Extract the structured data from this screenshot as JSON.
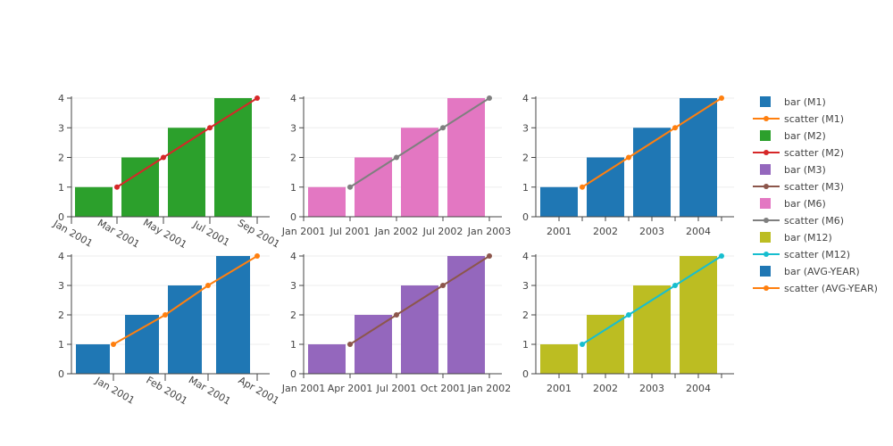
{
  "chart_data": [
    {
      "type": "bar",
      "x_axis": "date-month",
      "x_ticks": [
        "Jan 2001",
        "Mar 2001",
        "May 2001",
        "Jul 2001",
        "Sep 2001"
      ],
      "x_tick_angle": 30,
      "bars": {
        "color": "#2ca02c",
        "x": [
          "Jan 2001",
          "Mar 2001",
          "May 2001",
          "Jul 2001"
        ],
        "values": [
          1,
          2,
          3,
          4
        ]
      },
      "line": {
        "color": "#d62728",
        "x": [
          "Feb 2001",
          "Apr 2001",
          "Jun 2001",
          "Aug 2001"
        ],
        "values": [
          1,
          2,
          3,
          4
        ]
      },
      "ylim": [
        0,
        4
      ],
      "y_ticks": [
        0,
        1,
        2,
        3,
        4
      ]
    },
    {
      "type": "bar",
      "x_axis": "date-half-year",
      "x_ticks": [
        "Jan 2001",
        "Jul 2001",
        "Jan 2002",
        "Jul 2002",
        "Jan 2003"
      ],
      "x_tick_angle": 0,
      "bars": {
        "color": "#e377c2",
        "x": [
          "Apr 2001",
          "Oct 2001",
          "Apr 2002",
          "Oct 2002"
        ],
        "values": [
          1,
          2,
          3,
          4
        ]
      },
      "line": {
        "color": "#7f7f7f",
        "x": [
          "Jul 2001",
          "Jan 2002",
          "Jul 2002",
          "Jan 2003"
        ],
        "values": [
          1,
          2,
          3,
          4
        ]
      },
      "ylim": [
        0,
        4
      ],
      "y_ticks": [
        0,
        1,
        2,
        3,
        4
      ]
    },
    {
      "type": "bar",
      "x_axis": "year",
      "x_ticks": [
        "2001",
        "2002",
        "2003",
        "2004"
      ],
      "x_tick_angle": 0,
      "bars": {
        "color": "#1f77b4",
        "x": [
          "2001",
          "2002",
          "2003",
          "2004"
        ],
        "values": [
          1,
          2,
          3,
          4
        ]
      },
      "line": {
        "color": "#ff7f0e",
        "x": [
          "Jul 2001",
          "Jul 2002",
          "Jul 2003",
          "Jul 2004"
        ],
        "values": [
          1,
          2,
          3,
          4
        ]
      },
      "ylim": [
        0,
        4
      ],
      "y_ticks": [
        0,
        1,
        2,
        3,
        4
      ]
    },
    {
      "type": "bar",
      "x_axis": "date-month",
      "x_ticks": [
        "Jan 2001",
        "Feb 2001",
        "Mar 2001",
        "Apr 2001"
      ],
      "x_tick_angle": 30,
      "bars": {
        "color": "#1f77b4",
        "x": [
          "Dec 2000",
          "Jan 2001",
          "Feb 2001",
          "Mar 2001"
        ],
        "values": [
          1,
          2,
          3,
          4
        ]
      },
      "line": {
        "color": "#ff7f0e",
        "x": [
          "Jan 2001",
          "Feb 2001",
          "Mar 2001",
          "Apr 2001"
        ],
        "values": [
          1,
          2,
          3,
          4
        ]
      },
      "ylim": [
        0,
        4
      ],
      "y_ticks": [
        0,
        1,
        2,
        3,
        4
      ]
    },
    {
      "type": "bar",
      "x_axis": "date-quarter",
      "x_ticks": [
        "Jan 2001",
        "Apr 2001",
        "Jul 2001",
        "Oct 2001",
        "Jan 2002"
      ],
      "x_tick_angle": 0,
      "bars": {
        "color": "#9467bd",
        "x": [
          "Q1 2001",
          "Q2 2001",
          "Q3 2001",
          "Q4 2001"
        ],
        "values": [
          1,
          2,
          3,
          4
        ]
      },
      "line": {
        "color": "#8c564b",
        "x": [
          "Apr 2001",
          "Jul 2001",
          "Oct 2001",
          "Jan 2002"
        ],
        "values": [
          1,
          2,
          3,
          4
        ]
      },
      "ylim": [
        0,
        4
      ],
      "y_ticks": [
        0,
        1,
        2,
        3,
        4
      ]
    },
    {
      "type": "bar",
      "x_axis": "year",
      "x_ticks": [
        "2001",
        "2002",
        "2003",
        "2004"
      ],
      "x_tick_angle": 0,
      "bars": {
        "color": "#bcbd22",
        "x": [
          "2001",
          "2002",
          "2003",
          "2004"
        ],
        "values": [
          1,
          2,
          3,
          4
        ]
      },
      "line": {
        "color": "#17becf",
        "x": [
          "Jul 2001",
          "Jul 2002",
          "Jul 2003",
          "Jul 2004"
        ],
        "values": [
          1,
          2,
          3,
          4
        ]
      },
      "ylim": [
        0,
        4
      ],
      "y_ticks": [
        0,
        1,
        2,
        3,
        4
      ]
    }
  ],
  "legend": {
    "position": "right",
    "items": [
      {
        "label": "bar (M1)",
        "kind": "bar",
        "color": "#1f77b4"
      },
      {
        "label": "scatter (M1)",
        "kind": "line",
        "color": "#ff7f0e"
      },
      {
        "label": "bar (M2)",
        "kind": "bar",
        "color": "#2ca02c"
      },
      {
        "label": "scatter (M2)",
        "kind": "line",
        "color": "#d62728"
      },
      {
        "label": "bar (M3)",
        "kind": "bar",
        "color": "#9467bd"
      },
      {
        "label": "scatter (M3)",
        "kind": "line",
        "color": "#8c564b"
      },
      {
        "label": "bar (M6)",
        "kind": "bar",
        "color": "#e377c2"
      },
      {
        "label": "scatter (M6)",
        "kind": "line",
        "color": "#7f7f7f"
      },
      {
        "label": "bar (M12)",
        "kind": "bar",
        "color": "#bcbd22"
      },
      {
        "label": "scatter (M12)",
        "kind": "line",
        "color": "#17becf"
      },
      {
        "label": "bar (AVG-YEAR)",
        "kind": "bar",
        "color": "#1f77b4"
      },
      {
        "label": "scatter (AVG-YEAR)",
        "kind": "line",
        "color": "#ff7f0e"
      }
    ]
  }
}
